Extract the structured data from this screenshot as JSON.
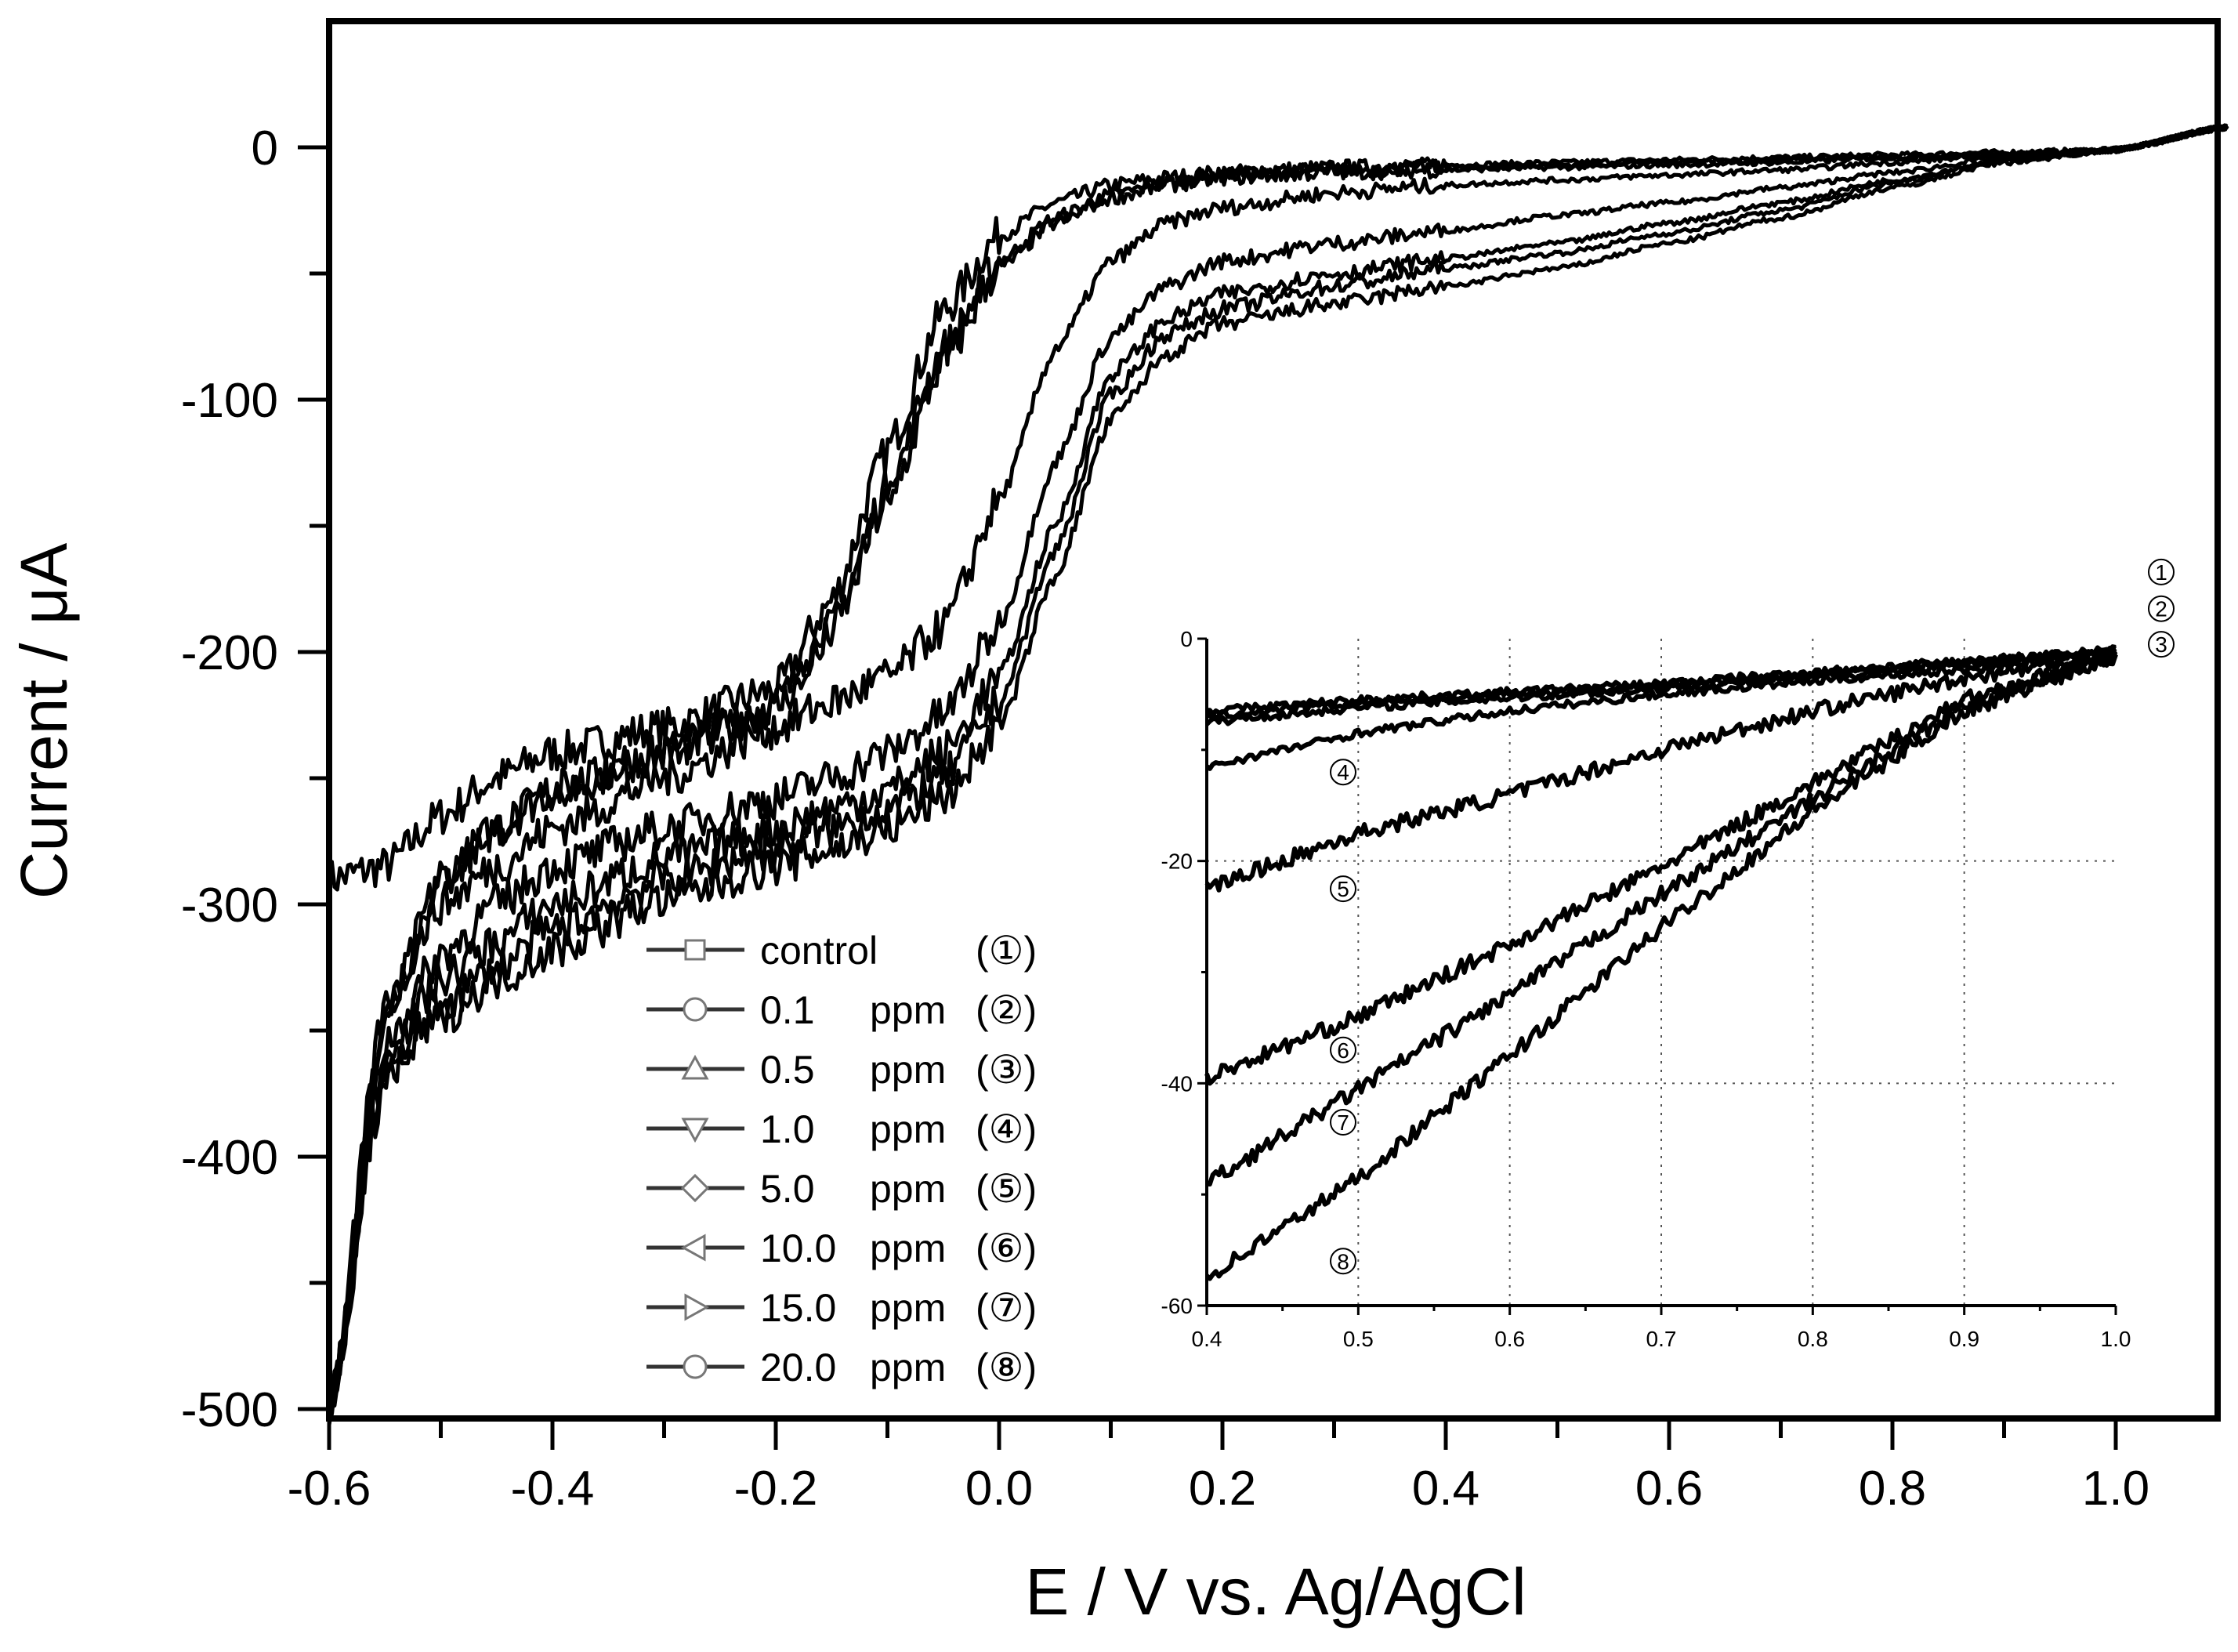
{
  "chart_data": [
    {
      "type": "line",
      "title": "",
      "xlabel": "E / V vs. Ag/AgCl",
      "ylabel": "Current / μA",
      "xlim": [
        -0.6,
        1.1
      ],
      "ylim": [
        -500,
        50
      ],
      "xticks": [
        -0.6,
        -0.4,
        -0.2,
        0.0,
        0.2,
        0.4,
        0.6,
        0.8,
        1.0
      ],
      "xtick_labels": [
        "-0.6",
        "-0.4",
        "-0.2",
        "0.0",
        "0.2",
        "0.4",
        "0.6",
        "0.8",
        "1.0"
      ],
      "yticks": [
        0,
        -100,
        -200,
        -300,
        -400,
        -500
      ],
      "ytick_labels": [
        "0",
        "-100",
        "-200",
        "-300",
        "-400",
        "-500"
      ],
      "grid": false,
      "legend_position": "bottom-center",
      "legend": [
        {
          "label": "control",
          "unit": "",
          "marker": "square",
          "id": "①"
        },
        {
          "label": "0.1",
          "unit": "ppm",
          "marker": "circle",
          "id": "②"
        },
        {
          "label": "0.5",
          "unit": "ppm",
          "marker": "triangle-up",
          "id": "③"
        },
        {
          "label": "1.0",
          "unit": "ppm",
          "marker": "triangle-down",
          "id": "④"
        },
        {
          "label": "5.0",
          "unit": "ppm",
          "marker": "diamond",
          "id": "⑤"
        },
        {
          "label": "10.0",
          "unit": "ppm",
          "marker": "triangle-left",
          "id": "⑥"
        },
        {
          "label": "15.0",
          "unit": "ppm",
          "marker": "triangle-right",
          "id": "⑦"
        },
        {
          "label": "20.0",
          "unit": "ppm",
          "marker": "circle",
          "id": "⑧"
        }
      ],
      "x": [
        -0.6,
        -0.55,
        -0.5,
        -0.45,
        -0.4,
        -0.3,
        -0.2,
        -0.15,
        -0.1,
        -0.05,
        0.0,
        0.05,
        0.1,
        0.15,
        0.2,
        0.3,
        0.4,
        0.5,
        0.6,
        0.7,
        0.8,
        0.9,
        1.0,
        1.1
      ],
      "series": [
        {
          "name": "control (①)",
          "values": [
            -290,
            -285,
            -265,
            -250,
            -240,
            -230,
            -215,
            -180,
            -120,
            -65,
            -35,
            -22,
            -15,
            -12,
            -10,
            -8,
            -7,
            -6,
            -5,
            -4,
            -3,
            -2,
            -1,
            8
          ]
        },
        {
          "name": "0.1 ppm (②)",
          "values": [
            -500,
            -345,
            -290,
            -270,
            -255,
            -240,
            -220,
            -190,
            -135,
            -80,
            -45,
            -28,
            -19,
            -14,
            -11,
            -9,
            -8,
            -7,
            -6,
            -5,
            -4,
            -3,
            -1,
            8
          ]
        },
        {
          "name": "0.5 ppm (③)",
          "values": [
            -500,
            -345,
            -290,
            -270,
            -255,
            -240,
            -222,
            -192,
            -140,
            -85,
            -48,
            -30,
            -20,
            -15,
            -12,
            -10,
            -9,
            -8,
            -7,
            -6,
            -4,
            -3,
            -1,
            8
          ]
        },
        {
          "name": "1.0 ppm (④)",
          "values": [
            -500,
            -340,
            -300,
            -285,
            -270,
            -250,
            -230,
            -220,
            -210,
            -190,
            -140,
            -80,
            -45,
            -30,
            -24,
            -18,
            -15,
            -13,
            -11,
            -9,
            -6,
            -3,
            -1,
            8
          ]
        },
        {
          "name": "5.0 ppm (⑤)",
          "values": [
            -500,
            -355,
            -320,
            -300,
            -285,
            -270,
            -258,
            -250,
            -240,
            -225,
            -190,
            -125,
            -75,
            -55,
            -45,
            -38,
            -33,
            -27,
            -22,
            -16,
            -10,
            -4,
            -1,
            8
          ]
        },
        {
          "name": "10.0 ppm (⑥)",
          "values": [
            -500,
            -360,
            -330,
            -315,
            -300,
            -282,
            -270,
            -262,
            -255,
            -240,
            -210,
            -150,
            -90,
            -68,
            -58,
            -50,
            -44,
            -38,
            -30,
            -22,
            -13,
            -5,
            -1,
            8
          ]
        },
        {
          "name": "15.0 ppm (⑦)",
          "values": [
            -500,
            -365,
            -340,
            -325,
            -310,
            -290,
            -278,
            -270,
            -262,
            -250,
            -220,
            -160,
            -98,
            -74,
            -64,
            -55,
            -48,
            -42,
            -34,
            -25,
            -14,
            -5,
            -1,
            8
          ]
        },
        {
          "name": "20.0 ppm (⑧)",
          "values": [
            -500,
            -370,
            -345,
            -330,
            -318,
            -298,
            -285,
            -278,
            -270,
            -258,
            -230,
            -170,
            -108,
            -82,
            -70,
            -62,
            -55,
            -48,
            -38,
            -28,
            -16,
            -6,
            -1,
            8
          ]
        }
      ]
    },
    {
      "type": "line",
      "title": "inset",
      "xlabel": "",
      "ylabel": "",
      "xlim": [
        0.4,
        1.0
      ],
      "ylim": [
        -60,
        0
      ],
      "xticks": [
        0.4,
        0.5,
        0.6,
        0.7,
        0.8,
        0.9,
        1.0
      ],
      "xtick_labels": [
        "0.4",
        "0.5",
        "0.6",
        "0.7",
        "0.8",
        "0.9",
        "1.0"
      ],
      "yticks": [
        0,
        -20,
        -40,
        -60
      ],
      "ytick_labels": [
        "0",
        "-20",
        "-40",
        "-60"
      ],
      "grid": true,
      "x": [
        0.4,
        0.5,
        0.6,
        0.7,
        0.8,
        0.9,
        1.0
      ],
      "series": [
        {
          "name": "①",
          "values": [
            -6.5,
            -5.5,
            -4.8,
            -4.0,
            -3.0,
            -2.0,
            -1.0
          ]
        },
        {
          "name": "②",
          "values": [
            -7.0,
            -5.8,
            -5.0,
            -4.2,
            -3.2,
            -2.2,
            -1.0
          ]
        },
        {
          "name": "③",
          "values": [
            -7.5,
            -6.2,
            -5.3,
            -4.5,
            -3.5,
            -2.4,
            -1.2
          ]
        },
        {
          "name": "④",
          "values": [
            -11.5,
            -8.5,
            -6.5,
            -5.0,
            -3.8,
            -2.8,
            -1.5
          ]
        },
        {
          "name": "⑤",
          "values": [
            -22.5,
            -17.5,
            -14.0,
            -10.0,
            -6.5,
            -3.5,
            -1.5
          ]
        },
        {
          "name": "⑥",
          "values": [
            -39.5,
            -34.0,
            -27.5,
            -20.5,
            -13.0,
            -5.5,
            -1.5
          ]
        },
        {
          "name": "⑦",
          "values": [
            -49.0,
            -40.5,
            -32.0,
            -23.0,
            -14.5,
            -6.0,
            -1.5
          ]
        },
        {
          "name": "⑧",
          "values": [
            -57.5,
            -48.5,
            -37.5,
            -26.0,
            -15.5,
            -6.5,
            -1.5
          ]
        }
      ],
      "curve_labels": [
        {
          "id": "①",
          "x": 1.03,
          "y": 6
        },
        {
          "id": "②",
          "x": 1.03,
          "y": 2.7
        },
        {
          "id": "③",
          "x": 1.03,
          "y": -0.5
        },
        {
          "id": "④",
          "x": 0.49,
          "y": -12
        },
        {
          "id": "⑤",
          "x": 0.49,
          "y": -22.5
        },
        {
          "id": "⑥",
          "x": 0.49,
          "y": -37
        },
        {
          "id": "⑦",
          "x": 0.49,
          "y": -43.5
        },
        {
          "id": "⑧",
          "x": 0.49,
          "y": -56
        }
      ]
    }
  ]
}
